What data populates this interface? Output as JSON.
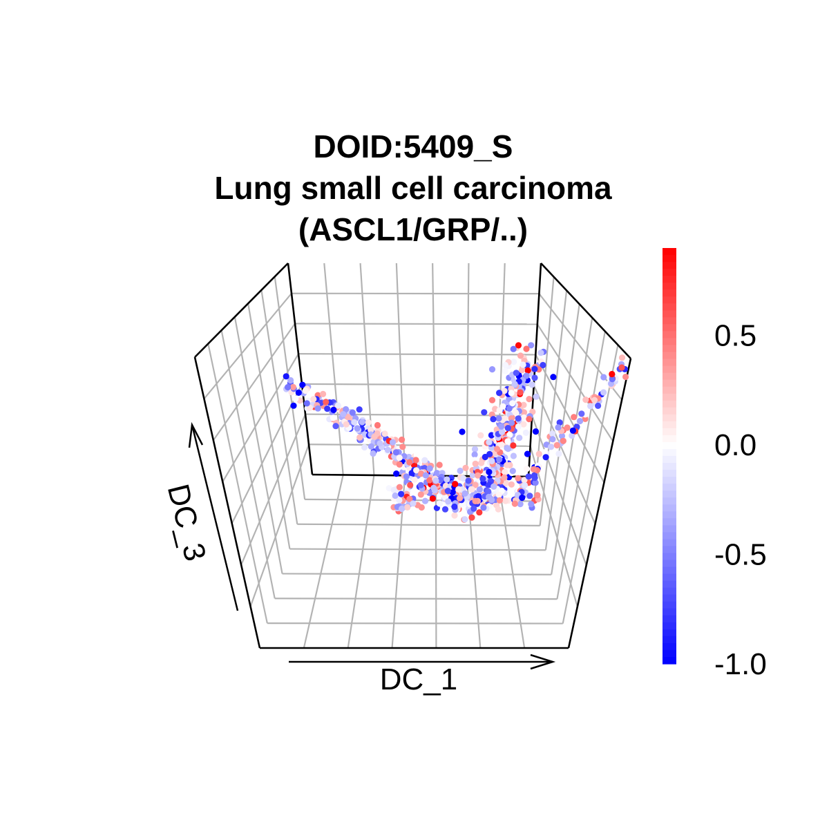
{
  "chart_data": {
    "type": "scatter",
    "projection": "3d",
    "title_lines": [
      "DOID:5409_S",
      "Lung small cell carcinoma",
      "(ASCL1/GRP/..)"
    ],
    "xlabel": "DC_1",
    "zlabel": "DC_3",
    "grid": true,
    "colorbar": {
      "placement": "right",
      "ticks": [
        "0.5",
        "0.0",
        "-0.5",
        "-1.0"
      ],
      "tick_values": [
        0.5,
        0.0,
        -0.5,
        -1.0
      ],
      "range": [
        -1.0,
        0.9
      ],
      "colors": {
        "low": "#0000ff",
        "mid": "#ffffff",
        "high": "#ff0000"
      }
    },
    "point_cloud": {
      "shape": "U-shaped curve",
      "approx_count": 900,
      "value_range": [
        -1.0,
        0.9
      ]
    }
  }
}
